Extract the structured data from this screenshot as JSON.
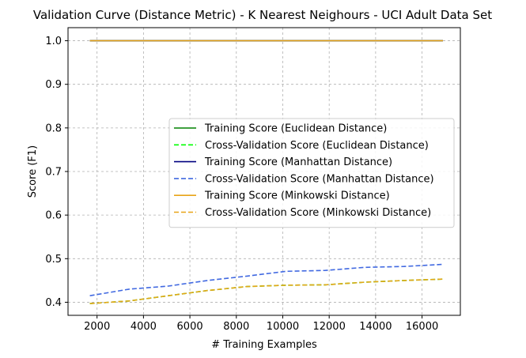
{
  "chart_data": {
    "type": "line",
    "title": "Validation Curve (Distance Metric) - K Nearest Neighours - UCI Adult Data Set",
    "xlabel": "# Training Examples",
    "ylabel": "Score (F1)",
    "xlim": [
      750,
      17650
    ],
    "ylim": [
      0.37,
      1.03
    ],
    "xticks": [
      2000,
      4000,
      6000,
      8000,
      10000,
      12000,
      14000,
      16000
    ],
    "yticks": [
      0.4,
      0.5,
      0.6,
      0.7,
      0.8,
      0.9,
      1.0
    ],
    "ytick_labels": [
      "0.4",
      "0.5",
      "0.6",
      "0.7",
      "0.8",
      "0.9",
      "1.0"
    ],
    "grid": true,
    "legend_position": "center-right",
    "x": [
      1690,
      3380,
      5070,
      6760,
      8450,
      10140,
      11830,
      13520,
      15210,
      16900
    ],
    "series": [
      {
        "name": "Training Score (Euclidean Distance)",
        "color": "#008000",
        "dash": "solid",
        "values": [
          1.0,
          1.0,
          1.0,
          1.0,
          1.0,
          1.0,
          1.0,
          1.0,
          1.0,
          1.0
        ]
      },
      {
        "name": "Cross-Validation Score (Euclidean Distance)",
        "color": "#00ff00",
        "dash": "dashed",
        "values": [
          0.397,
          0.403,
          0.415,
          0.427,
          0.436,
          0.439,
          0.44,
          0.446,
          0.45,
          0.453
        ]
      },
      {
        "name": "Training Score (Manhattan Distance)",
        "color": "#000080",
        "dash": "solid",
        "values": [
          1.0,
          1.0,
          1.0,
          1.0,
          1.0,
          1.0,
          1.0,
          1.0,
          1.0,
          1.0
        ]
      },
      {
        "name": "Cross-Validation Score (Manhattan Distance)",
        "color": "#4169e1",
        "dash": "dashed",
        "values": [
          0.415,
          0.43,
          0.437,
          0.45,
          0.46,
          0.471,
          0.473,
          0.48,
          0.482,
          0.487
        ]
      },
      {
        "name": "Training Score (Minkowski Distance)",
        "color": "#e8a317",
        "dash": "solid",
        "values": [
          1.0,
          1.0,
          1.0,
          1.0,
          1.0,
          1.0,
          1.0,
          1.0,
          1.0,
          1.0
        ]
      },
      {
        "name": "Cross-Validation Score (Minkowski Distance)",
        "color": "#e8a317",
        "dash": "dashed",
        "values": [
          0.397,
          0.403,
          0.415,
          0.427,
          0.436,
          0.439,
          0.44,
          0.446,
          0.45,
          0.453
        ]
      }
    ]
  }
}
